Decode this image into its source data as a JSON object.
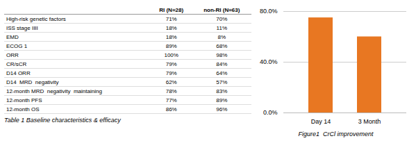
{
  "chart_data": [
    {
      "type": "table",
      "title": "Table 1 Baseline characteristics & efficacy",
      "col_headers": [
        null,
        "RI (N=28)",
        "non-RI (N=63)"
      ],
      "rows": [
        [
          "High-risk genetic factors",
          "71%",
          "70%"
        ],
        [
          "ISS stage IIII",
          "18%",
          "11%"
        ],
        [
          "EMD",
          "18%",
          "8%"
        ],
        [
          "ECOG 1",
          "89%",
          "68%"
        ],
        [
          "ORR",
          "100%",
          "98%"
        ],
        [
          "CR/sCR",
          "79%",
          "84%"
        ],
        [
          "D14 ORR",
          "79%",
          "64%"
        ],
        [
          "D14  MRD  negativity",
          "62%",
          "57%"
        ],
        [
          "12-month MRD  negativity  maintaining",
          "78%",
          "83%"
        ],
        [
          "12-month PFS",
          "77%",
          "89%"
        ],
        [
          "12-month OS",
          "86%",
          "96%"
        ]
      ]
    },
    {
      "type": "bar",
      "title": "Figure1  CrCl improvement",
      "categories": [
        "Day 14",
        "3 Month"
      ],
      "values": [
        75,
        60
      ],
      "color": "#E87722",
      "ylim": [
        0,
        80
      ],
      "yticks": [
        {
          "value": 0,
          "label": "0.0%"
        },
        {
          "value": 40,
          "label": "40.0%"
        },
        {
          "value": 80,
          "label": "80.0%"
        }
      ],
      "grid": true
    }
  ]
}
